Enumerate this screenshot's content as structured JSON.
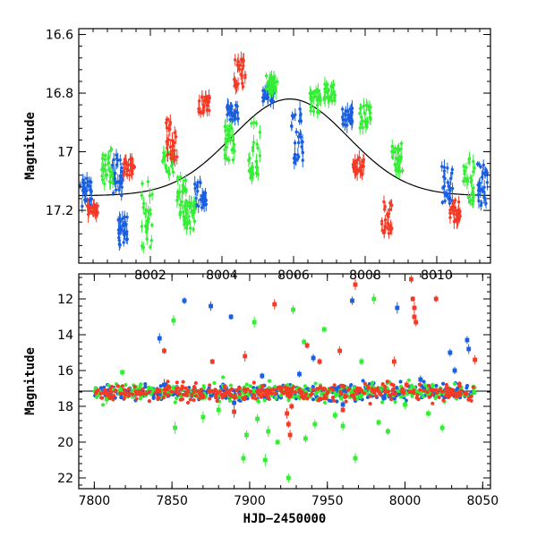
{
  "chart_data": [
    {
      "type": "scatter",
      "panel": "top",
      "xlabel": "",
      "ylabel": "Magnitude",
      "xlim": [
        8000.0,
        8011.5
      ],
      "ylim": [
        17.38,
        16.58
      ],
      "y_inverted": true,
      "x_ticks": [
        8002,
        8004,
        8006,
        8008,
        8010
      ],
      "y_ticks": [
        16.6,
        16.8,
        17,
        17.2
      ],
      "x_tick_labels": [
        "8002",
        "8004",
        "8006",
        "8008",
        "8010"
      ],
      "y_tick_labels": [
        "16.6",
        "16.8",
        "17",
        "17.2"
      ],
      "model_curve": {
        "color": "#000000",
        "baseline": 17.15,
        "peak": 16.82,
        "t0": 8005.9,
        "width": 2.3
      },
      "colors": {
        "blue": "#1a5fe0",
        "green": "#33ee33",
        "red": "#f43a26"
      },
      "series": [
        {
          "color_key": "blue",
          "clusters": [
            [
              8000.2,
              17.14,
              0.06
            ],
            [
              8001.1,
              17.08,
              0.07
            ],
            [
              8001.2,
              17.27,
              0.05
            ],
            [
              8003.4,
              17.15,
              0.05
            ],
            [
              8004.3,
              16.87,
              0.03
            ],
            [
              8005.3,
              16.8,
              0.03
            ],
            [
              8006.1,
              16.95,
              0.1
            ],
            [
              8007.5,
              16.88,
              0.03
            ],
            [
              8010.3,
              17.12,
              0.07
            ],
            [
              8011.3,
              17.12,
              0.08
            ]
          ]
        },
        {
          "color_key": "green",
          "clusters": [
            [
              8000.8,
              17.05,
              0.06
            ],
            [
              8001.9,
              17.22,
              0.12
            ],
            [
              8002.5,
              17.03,
              0.05
            ],
            [
              8002.9,
              17.15,
              0.07
            ],
            [
              8003.1,
              17.22,
              0.05
            ],
            [
              8004.2,
              16.97,
              0.06
            ],
            [
              8004.9,
              17.0,
              0.1
            ],
            [
              8005.4,
              16.77,
              0.03
            ],
            [
              8006.6,
              16.83,
              0.04
            ],
            [
              8007.0,
              16.8,
              0.03
            ],
            [
              8008.0,
              16.88,
              0.04
            ],
            [
              8008.9,
              17.02,
              0.05
            ],
            [
              8010.9,
              17.1,
              0.08
            ]
          ]
        },
        {
          "color_key": "red",
          "clusters": [
            [
              8000.4,
              17.2,
              0.02
            ],
            [
              8001.4,
              17.05,
              0.03
            ],
            [
              8002.6,
              16.96,
              0.07
            ],
            [
              8003.5,
              16.84,
              0.03
            ],
            [
              8004.5,
              16.73,
              0.05
            ],
            [
              8007.8,
              17.05,
              0.03
            ],
            [
              8008.6,
              17.22,
              0.06
            ],
            [
              8010.5,
              17.2,
              0.04
            ]
          ]
        }
      ]
    },
    {
      "type": "scatter",
      "panel": "bottom",
      "xlabel": "HJD−2450000",
      "ylabel": "Magnitude",
      "xlim": [
        7790,
        8055
      ],
      "ylim": [
        22.6,
        10.6
      ],
      "y_inverted": true,
      "x_ticks": [
        7800,
        7850,
        7900,
        7950,
        8000,
        8050
      ],
      "y_ticks": [
        12,
        14,
        16,
        18,
        20,
        22
      ],
      "x_tick_labels": [
        "7800",
        "7850",
        "7900",
        "7950",
        "8000",
        "8050"
      ],
      "y_tick_labels": [
        "12",
        "14",
        "16",
        "18",
        "20",
        "22"
      ],
      "baseline_line": {
        "y": 17.15,
        "color": "#000000"
      },
      "colors": {
        "blue": "#1a5fe0",
        "green": "#33ee33",
        "red": "#f43a26"
      },
      "series": [
        {
          "color_key": "blue",
          "outliers": [
            [
              7842,
              14.2
            ],
            [
              7858,
              12.1
            ],
            [
              7875,
              12.4
            ],
            [
              7888,
              13.0
            ],
            [
              7908,
              16.3
            ],
            [
              7932,
              16.2
            ],
            [
              7941,
              15.3
            ],
            [
              7966,
              12.1
            ],
            [
              7995,
              12.5
            ],
            [
              8010,
              16.5
            ],
            [
              8029,
              15.0
            ],
            [
              8032,
              16.0
            ],
            [
              8040,
              14.3
            ],
            [
              8041,
              14.8
            ],
            [
              7845,
              16.8
            ],
            [
              7890,
              17.8
            ],
            [
              7960,
              17.9
            ]
          ]
        },
        {
          "color_key": "green",
          "outliers": [
            [
              7808,
              17.6
            ],
            [
              7818,
              16.1
            ],
            [
              7851,
              13.2
            ],
            [
              7852,
              19.2
            ],
            [
              7870,
              18.6
            ],
            [
              7896,
              20.9
            ],
            [
              7898,
              19.6
            ],
            [
              7903,
              13.3
            ],
            [
              7912,
              19.4
            ],
            [
              7918,
              20.0
            ],
            [
              7925,
              22.0
            ],
            [
              7928,
              12.6
            ],
            [
              7935,
              14.4
            ],
            [
              7942,
              19.0
            ],
            [
              7948,
              13.7
            ],
            [
              7960,
              19.1
            ],
            [
              7968,
              20.9
            ],
            [
              7972,
              15.5
            ],
            [
              7980,
              12.0
            ],
            [
              7983,
              18.9
            ],
            [
              7989,
              19.4
            ],
            [
              8000,
              17.9
            ],
            [
              8015,
              18.4
            ],
            [
              8024,
              19.2
            ],
            [
              7936,
              19.8
            ],
            [
              7955,
              18.5
            ],
            [
              7905,
              18.7
            ],
            [
              7910,
              21.0
            ],
            [
              7880,
              18.2
            ]
          ]
        },
        {
          "color_key": "red",
          "outliers": [
            [
              7845,
              14.9
            ],
            [
              7876,
              15.5
            ],
            [
              7897,
              15.2
            ],
            [
              7916,
              12.3
            ],
            [
              7937,
              14.6
            ],
            [
              7945,
              15.5
            ],
            [
              7958,
              14.9
            ],
            [
              7968,
              11.2
            ],
            [
              7993,
              15.5
            ],
            [
              8004,
              10.9
            ],
            [
              8005,
              12.0
            ],
            [
              8006,
              12.5
            ],
            [
              8006,
              13.0
            ],
            [
              8007,
              13.3
            ],
            [
              8020,
              12.0
            ],
            [
              8045,
              15.4
            ],
            [
              7924,
              18.4
            ],
            [
              7925,
              19.0
            ],
            [
              7926,
              19.6
            ],
            [
              7927,
              18.0
            ],
            [
              7890,
              18.3
            ],
            [
              7960,
              18.2
            ],
            [
              8001,
              16.8
            ]
          ]
        }
      ]
    }
  ]
}
